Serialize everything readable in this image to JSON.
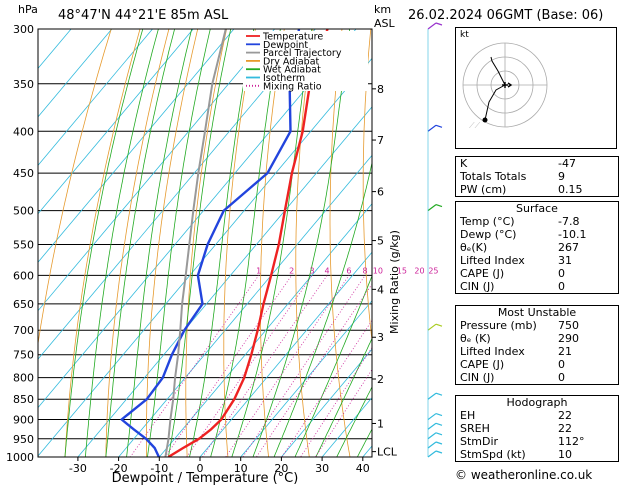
{
  "header": {
    "hpa_label": "hPa",
    "location": "48°47'N 44°21'E 85m ASL",
    "km_label": "km",
    "asl_label": "ASL",
    "datetime": "26.02.2024 06GMT (Base: 06)"
  },
  "chart_data": {
    "type": "line",
    "xlabel": "Dewpoint / Temperature (°C)",
    "ylabel": "Mixing Ratio (g/kg)",
    "x_ticks": [
      -30,
      -20,
      -10,
      0,
      10,
      20,
      30,
      40
    ],
    "pressure_levels": [
      300,
      350,
      400,
      450,
      500,
      550,
      600,
      650,
      700,
      750,
      800,
      850,
      900,
      950,
      1000
    ],
    "km_ticks": [
      {
        "label": "8",
        "p": 355
      },
      {
        "label": "7",
        "p": 410
      },
      {
        "label": "6",
        "p": 474
      },
      {
        "label": "5",
        "p": 544
      },
      {
        "label": "4",
        "p": 624
      },
      {
        "label": "3",
        "p": 714
      },
      {
        "label": "2",
        "p": 803
      },
      {
        "label": "1",
        "p": 910
      },
      {
        "label": "LCL",
        "p": 985
      }
    ],
    "mixing_ratio_labels": [
      "1",
      "2",
      "3",
      "4",
      "6",
      "8",
      "10",
      "15",
      "20",
      "25"
    ],
    "legend": [
      {
        "name": "Temperature",
        "color": "#ee2222"
      },
      {
        "name": "Dewpoint",
        "color": "#2244dd"
      },
      {
        "name": "Parcel Trajectory",
        "color": "#999999"
      },
      {
        "name": "Dry Adiabat",
        "color": "#e69a2e"
      },
      {
        "name": "Wet Adiabat",
        "color": "#22aa22"
      },
      {
        "name": "Isotherm",
        "color": "#33bbdd"
      },
      {
        "name": "Mixing Ratio",
        "color": "#cc2299"
      }
    ],
    "series": [
      {
        "name": "Temperature",
        "color": "#ee2222",
        "p": [
          1000,
          975,
          950,
          925,
          900,
          850,
          800,
          750,
          700,
          650,
          600,
          550,
          500,
          450,
          400,
          350,
          300
        ],
        "t": [
          -7.8,
          -6.0,
          -4.0,
          -3.0,
          -2.5,
          -3.5,
          -5.5,
          -8.5,
          -12.0,
          -16.0,
          -20.0,
          -24.5,
          -30.0,
          -36.0,
          -42.0,
          -50.0,
          -57.0
        ]
      },
      {
        "name": "Dewpoint",
        "color": "#2244dd",
        "p": [
          1000,
          975,
          950,
          925,
          900,
          850,
          800,
          750,
          700,
          650,
          600,
          550,
          500,
          450,
          400,
          350,
          300
        ],
        "t": [
          -10.1,
          -13.0,
          -17.0,
          -22.0,
          -27.0,
          -25.0,
          -25.5,
          -28.0,
          -30.0,
          -31.0,
          -38.0,
          -42.0,
          -45.0,
          -42.0,
          -45.0,
          -55.0,
          -64.0
        ]
      },
      {
        "name": "Parcel Trajectory",
        "color": "#999999",
        "p": [
          1000,
          950,
          900,
          850,
          800,
          750,
          700,
          650,
          600,
          550,
          500,
          450,
          400,
          350,
          300
        ],
        "t": [
          -8.5,
          -11.5,
          -15.0,
          -18.5,
          -22.5,
          -26.5,
          -31.0,
          -36.0,
          -41.0,
          -46.5,
          -52.5,
          -59.0,
          -66.0,
          -74.0,
          -82.0
        ]
      }
    ]
  },
  "indices": {
    "rows": [
      {
        "label": "K",
        "value": "-47"
      },
      {
        "label": "Totals Totals",
        "value": "9"
      },
      {
        "label": "PW (cm)",
        "value": "0.15"
      }
    ]
  },
  "surface": {
    "title": "Surface",
    "rows": [
      {
        "label": "Temp (°C)",
        "value": "-7.8"
      },
      {
        "label": "Dewp (°C)",
        "value": "-10.1"
      },
      {
        "label": "θₑ(K)",
        "value": "267"
      },
      {
        "label": "Lifted Index",
        "value": "31"
      },
      {
        "label": "CAPE (J)",
        "value": "0"
      },
      {
        "label": "CIN (J)",
        "value": "0"
      }
    ]
  },
  "most_unstable": {
    "title": "Most Unstable",
    "rows": [
      {
        "label": "Pressure (mb)",
        "value": "750"
      },
      {
        "label": "θₑ (K)",
        "value": "290"
      },
      {
        "label": "Lifted Index",
        "value": "21"
      },
      {
        "label": "CAPE (J)",
        "value": "0"
      },
      {
        "label": "CIN (J)",
        "value": "0"
      }
    ]
  },
  "hodograph": {
    "title": "Hodograph",
    "corner_label": "kt",
    "rows": [
      {
        "label": "EH",
        "value": "22"
      },
      {
        "label": "SREH",
        "value": "22"
      },
      {
        "label": "StmDir",
        "value": "112°"
      },
      {
        "label": "StmSpd (kt)",
        "value": "10"
      }
    ]
  },
  "footer": {
    "copyright": "© weatheronline.co.uk"
  }
}
